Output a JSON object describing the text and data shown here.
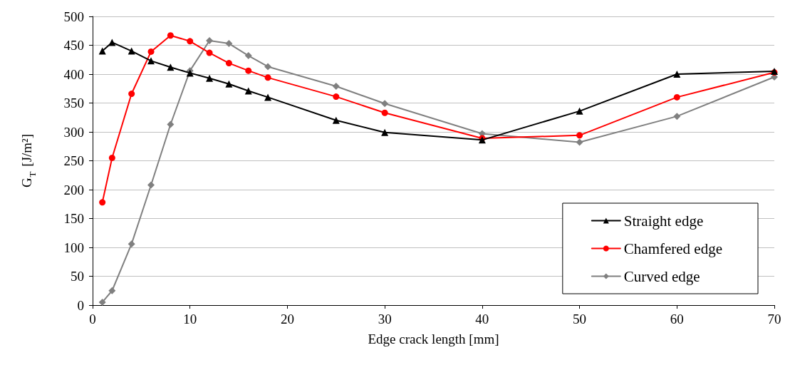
{
  "chart_data": {
    "type": "line",
    "xlabel": "Edge crack length [mm]",
    "ylabel": "G$_{T}$ [J/m²]",
    "x": [
      1,
      2,
      4,
      6,
      8,
      10,
      12,
      14,
      16,
      18,
      25,
      30,
      40,
      50,
      60,
      70
    ],
    "series": [
      {
        "name": "Straight edge",
        "color": "#000000",
        "marker": "triangle",
        "values": [
          440,
          455,
          440,
          423,
          412,
          402,
          393,
          383,
          371,
          360,
          320,
          299,
          286,
          336,
          400,
          405
        ]
      },
      {
        "name": "Chamfered edge",
        "color": "#ff0000",
        "marker": "circle",
        "values": [
          178,
          255,
          366,
          439,
          467,
          457,
          437,
          419,
          406,
          394,
          361,
          333,
          289,
          294,
          360,
          403
        ]
      },
      {
        "name": "Curved edge",
        "color": "#808080",
        "marker": "diamond",
        "values": [
          5,
          25,
          106,
          208,
          313,
          406,
          458,
          453,
          432,
          413,
          379,
          349,
          297,
          282,
          327,
          395
        ]
      }
    ],
    "xlim": [
      0,
      70
    ],
    "xticks": [
      0,
      10,
      20,
      30,
      40,
      50,
      60,
      70
    ],
    "ylim": [
      0,
      500
    ],
    "yticks": [
      0,
      50,
      100,
      150,
      200,
      250,
      300,
      350,
      400,
      450,
      500
    ],
    "grid": "y",
    "legend": "bottom right",
    "line_style": "solid"
  }
}
